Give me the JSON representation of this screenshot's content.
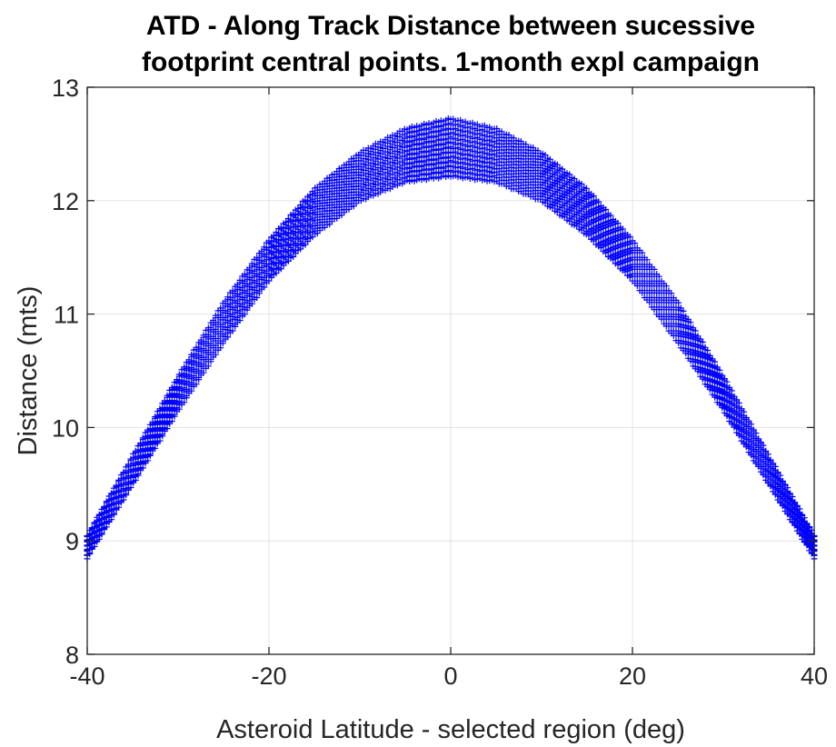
{
  "chart_data": {
    "type": "scatter",
    "title": [
      "ATD - Along Track Distance between sucessive",
      "footprint central points. 1-month expl campaign"
    ],
    "xlabel": "Asteroid Latitude - selected region (deg)",
    "ylabel": "Distance (mts)",
    "xlim": [
      -40,
      40
    ],
    "ylim": [
      8,
      13
    ],
    "xticks": [
      -40,
      -20,
      0,
      20,
      40
    ],
    "xtick_labels": [
      "-40",
      "-20",
      "0",
      "20",
      "40"
    ],
    "yticks": [
      8,
      9,
      10,
      11,
      12,
      13
    ],
    "ytick_labels": [
      "8",
      "9",
      "10",
      "11",
      "12",
      "13"
    ],
    "grid": true,
    "marker": "+",
    "series": [
      {
        "color": "#0000ff",
        "band": {
          "x": [
            -40,
            -35,
            -30,
            -25,
            -20,
            -15,
            -10,
            -5,
            0,
            5,
            10,
            15,
            20,
            25,
            30,
            35,
            40
          ],
          "y_low": [
            8.85,
            9.5,
            10.15,
            10.75,
            11.3,
            11.7,
            12.0,
            12.17,
            12.22,
            12.17,
            12.0,
            11.7,
            11.3,
            10.75,
            10.15,
            9.5,
            8.85
          ],
          "y_high": [
            9.05,
            9.75,
            10.45,
            11.1,
            11.65,
            12.1,
            12.42,
            12.63,
            12.72,
            12.63,
            12.42,
            12.1,
            11.65,
            11.1,
            10.45,
            9.75,
            9.05
          ]
        }
      }
    ]
  }
}
